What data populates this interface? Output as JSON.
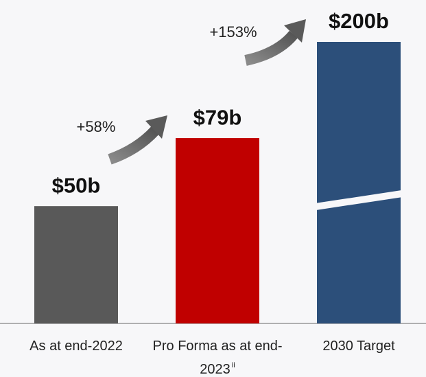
{
  "chart_data": {
    "type": "bar",
    "categories": [
      "As at end-2022",
      "Pro Forma as at end-2023",
      "2030 Target"
    ],
    "category_footnotes": [
      null,
      "ii",
      null
    ],
    "values": [
      50,
      79,
      200
    ],
    "value_labels": [
      "$50b",
      "$79b",
      "$200b"
    ],
    "colors": [
      "#595959",
      "#c00000",
      "#2c4f7a"
    ],
    "ylim": [
      0,
      120
    ],
    "axis_break": true,
    "annotations": [
      "+58%",
      "+153%"
    ]
  }
}
